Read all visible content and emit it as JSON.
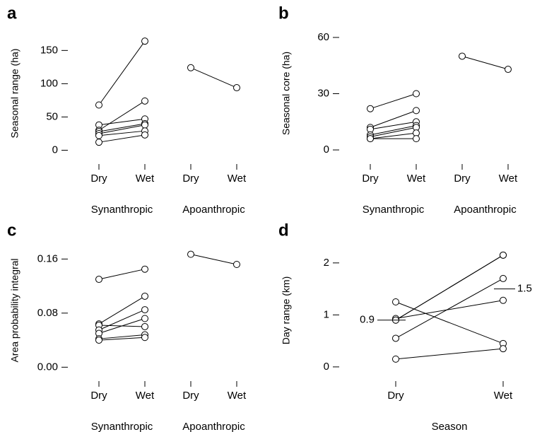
{
  "chart_data": [
    {
      "type": "paired",
      "label": "a",
      "ylabel": "Seasonal range (ha)",
      "categories": [
        "Dry",
        "Wet",
        "Dry",
        "Wet"
      ],
      "groups": [
        "Synanthropic",
        "Apoanthropic"
      ],
      "ylim": [
        -8,
        178
      ],
      "yticks": [
        0,
        50,
        100,
        150
      ],
      "color": "#000000",
      "series": [
        {
          "values": [
            68,
            164,
            null,
            null
          ]
        },
        {
          "values": [
            38,
            47,
            null,
            null
          ]
        },
        {
          "values": [
            30,
            74,
            null,
            null
          ]
        },
        {
          "values": [
            28,
            40,
            null,
            null
          ]
        },
        {
          "values": [
            25,
            38,
            null,
            null
          ]
        },
        {
          "values": [
            22,
            29,
            null,
            null
          ]
        },
        {
          "values": [
            12,
            23,
            null,
            null
          ]
        },
        {
          "values": [
            null,
            null,
            124,
            94
          ]
        }
      ]
    },
    {
      "type": "paired",
      "label": "b",
      "ylabel": "Seasonal core (ha)",
      "categories": [
        "Dry",
        "Wet",
        "Dry",
        "Wet"
      ],
      "groups": [
        "Synanthropic",
        "Apoanthropic"
      ],
      "ylim": [
        -3,
        63
      ],
      "yticks": [
        0,
        30,
        60
      ],
      "color": "#000000",
      "series": [
        {
          "values": [
            22,
            30,
            null,
            null
          ]
        },
        {
          "values": [
            12,
            21,
            null,
            null
          ]
        },
        {
          "values": [
            11,
            15,
            null,
            null
          ]
        },
        {
          "values": [
            8,
            13,
            null,
            null
          ]
        },
        {
          "values": [
            7,
            12,
            null,
            null
          ]
        },
        {
          "values": [
            6,
            9,
            null,
            null
          ]
        },
        {
          "values": [
            6,
            6,
            null,
            null
          ]
        },
        {
          "values": [
            null,
            null,
            50,
            43
          ]
        }
      ]
    },
    {
      "type": "paired",
      "label": "c",
      "ylabel": "Area probability integral",
      "categories": [
        "Dry",
        "Wet",
        "Dry",
        "Wet"
      ],
      "groups": [
        "Synanthropic",
        "Apoanthropic"
      ],
      "ylim": [
        -0.008,
        0.175
      ],
      "yticks": [
        {
          "value": 0,
          "label": "0.00"
        },
        0.08,
        0.16
      ],
      "color": "#000000",
      "series": [
        {
          "values": [
            0.13,
            0.145,
            null,
            null
          ]
        },
        {
          "values": [
            0.064,
            0.105,
            null,
            null
          ]
        },
        {
          "values": [
            0.062,
            0.06,
            null,
            null
          ]
        },
        {
          "values": [
            0.055,
            0.085,
            null,
            null
          ]
        },
        {
          "values": [
            0.05,
            0.072,
            null,
            null
          ]
        },
        {
          "values": [
            0.042,
            0.048,
            null,
            null
          ]
        },
        {
          "values": [
            0.04,
            0.044,
            null,
            null
          ]
        },
        {
          "values": [
            null,
            null,
            0.167,
            0.152
          ]
        }
      ]
    },
    {
      "type": "paired",
      "label": "d",
      "ylabel": "Day range (km)",
      "xlabel": "Season",
      "categories": [
        "Dry",
        "Wet"
      ],
      "ylim": [
        -0.11,
        2.27
      ],
      "yticks": [
        0,
        1,
        2
      ],
      "color": "#000000",
      "annotations": [
        {
          "value": 0.9,
          "label": "0.9"
        },
        {
          "value": 1.5,
          "label": "1.5"
        }
      ],
      "series": [
        {
          "values": [
            1.25,
            0.45
          ]
        },
        {
          "values": [
            0.93,
            1.28
          ]
        },
        {
          "values": [
            0.9,
            2.15
          ]
        },
        {
          "values": [
            0.9,
            2.15
          ]
        },
        {
          "values": [
            0.55,
            1.7
          ]
        },
        {
          "values": [
            0.15,
            0.35
          ]
        }
      ]
    }
  ]
}
